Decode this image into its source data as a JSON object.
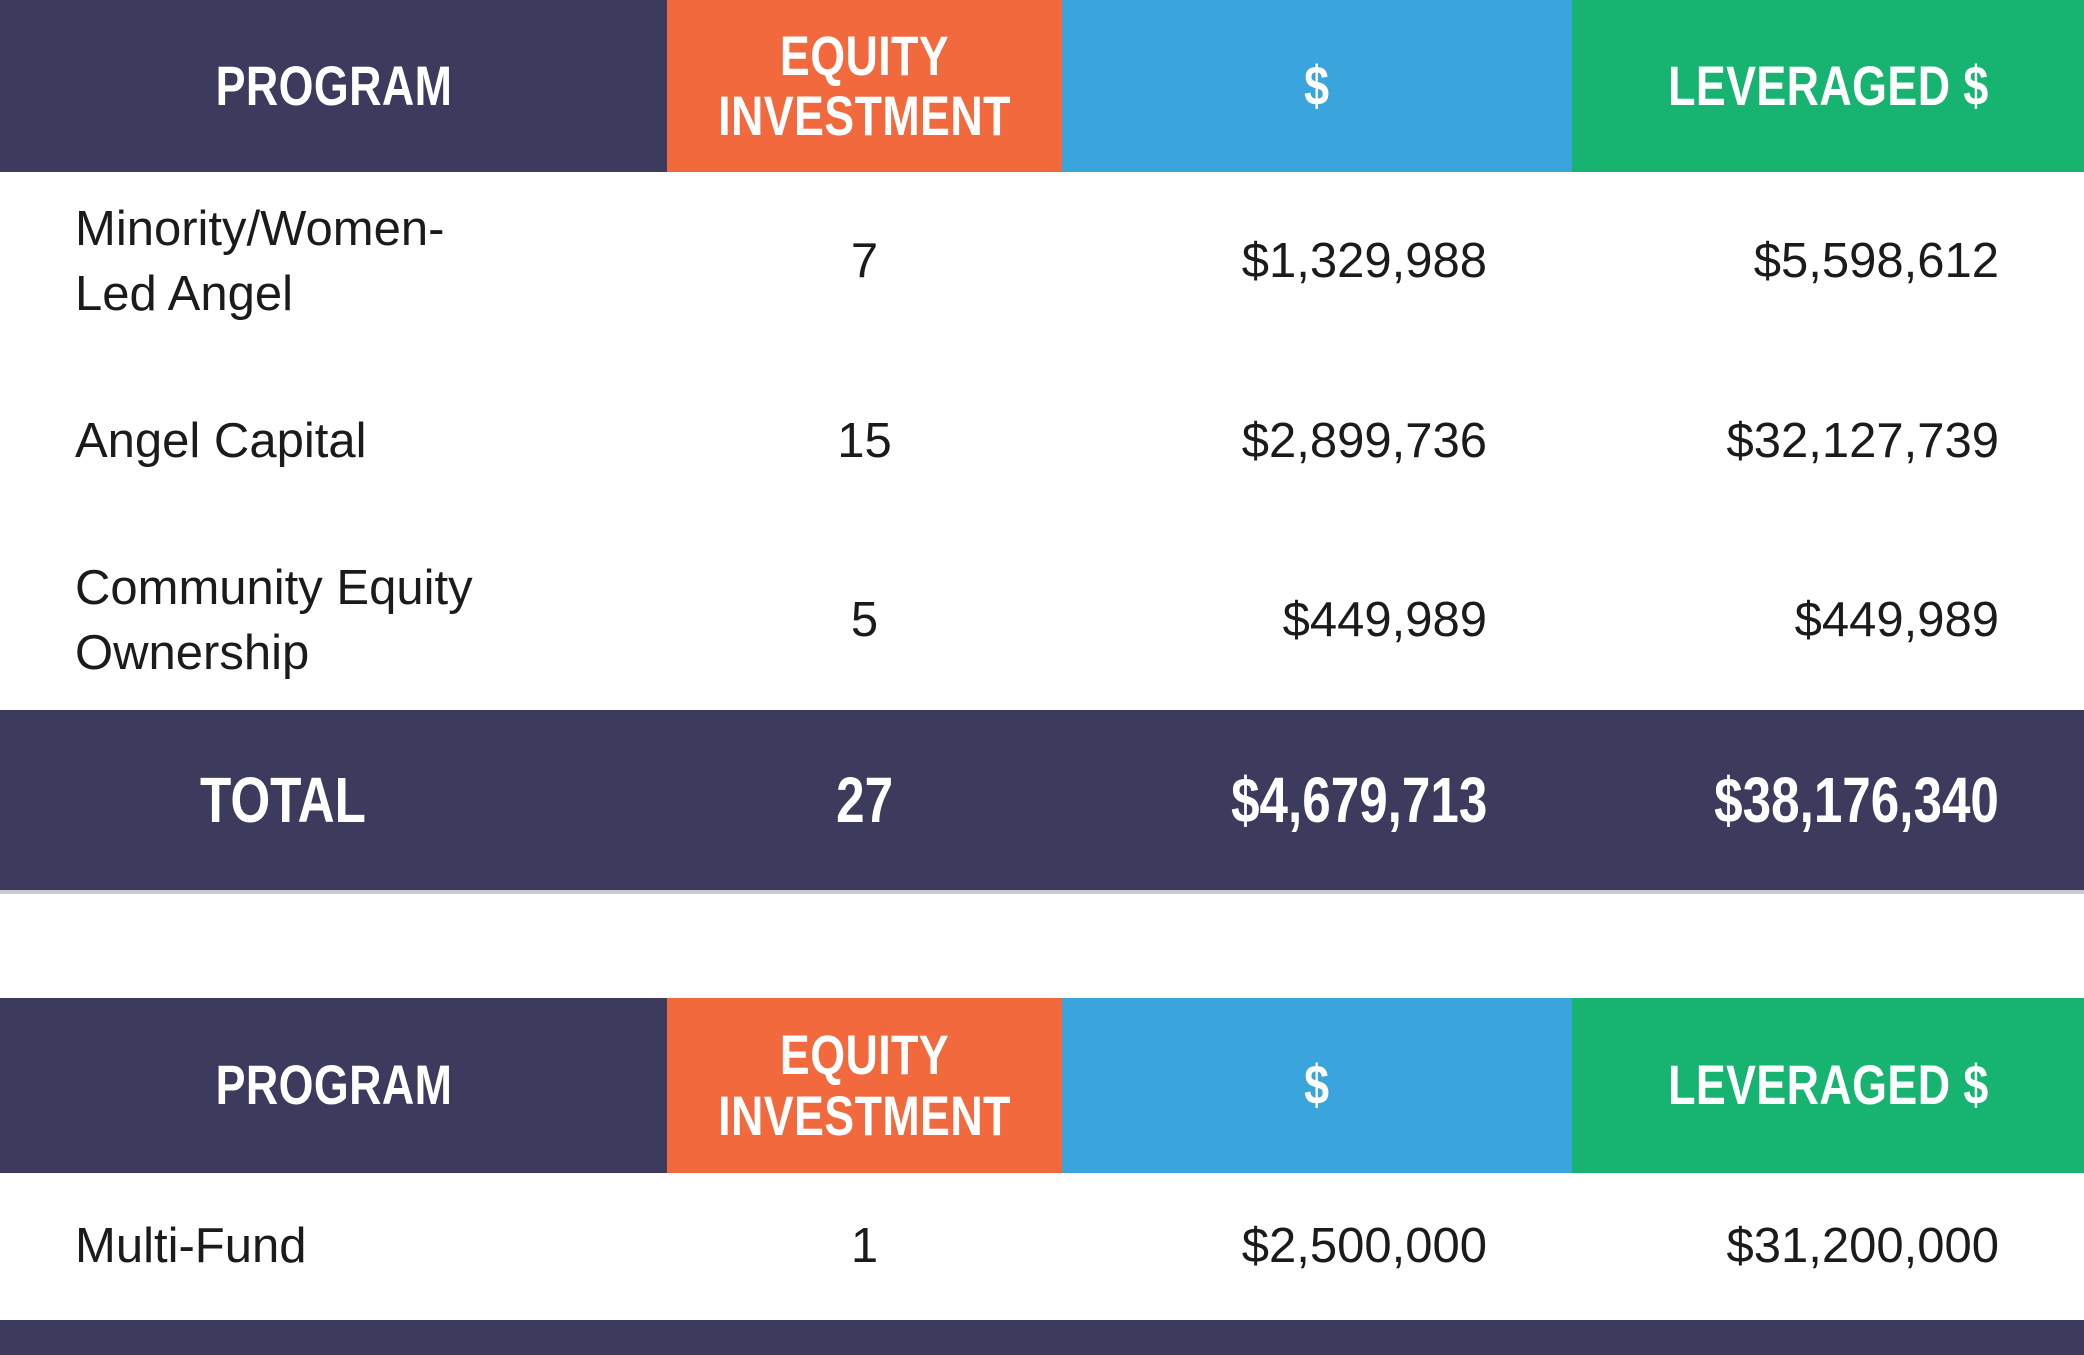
{
  "colors": {
    "navy": "#3C3A5D",
    "orange": "#F1693C",
    "blue": "#3AA4DC",
    "green": "#16B470",
    "text": "#1b1b1b",
    "header_text": "#ffffff"
  },
  "table1": {
    "headers": [
      "PROGRAM",
      "EQUITY INVESTMENT",
      "$",
      "LEVERAGED $"
    ],
    "rows": [
      {
        "program": "Minority/Women-Led Angel",
        "equity_investment": "7",
        "dollars": "$1,329,988",
        "leveraged": "$5,598,612"
      },
      {
        "program": "Angel Capital",
        "equity_investment": "15",
        "dollars": "$2,899,736",
        "leveraged": "$32,127,739"
      },
      {
        "program": "Community Equity Ownership",
        "equity_investment": "5",
        "dollars": "$449,989",
        "leveraged": "$449,989"
      }
    ],
    "total": {
      "label": "TOTAL",
      "equity_investment": "27",
      "dollars": "$4,679,713",
      "leveraged": "$38,176,340"
    }
  },
  "table2": {
    "headers": [
      "PROGRAM",
      "EQUITY INVESTMENT",
      "$",
      "LEVERAGED $"
    ],
    "rows": [
      {
        "program": "Multi-Fund",
        "equity_investment": "1",
        "dollars": "$2,500,000",
        "leveraged": "$31,200,000"
      }
    ]
  },
  "chart_data": [
    {
      "type": "table",
      "title": "",
      "columns": [
        "PROGRAM",
        "EQUITY INVESTMENT",
        "$",
        "LEVERAGED $"
      ],
      "rows": [
        [
          "Minority/Women-Led Angel",
          7,
          1329988,
          5598612
        ],
        [
          "Angel Capital",
          15,
          2899736,
          32127739
        ],
        [
          "Community Equity Ownership",
          5,
          449989,
          449989
        ]
      ],
      "total_row": [
        "TOTAL",
        27,
        4679713,
        38176340
      ],
      "header_colors": [
        "#3C3A5D",
        "#F1693C",
        "#3AA4DC",
        "#16B470"
      ],
      "total_row_color": "#3C3A5D"
    },
    {
      "type": "table",
      "title": "",
      "columns": [
        "PROGRAM",
        "EQUITY INVESTMENT",
        "$",
        "LEVERAGED $"
      ],
      "rows": [
        [
          "Multi-Fund",
          1,
          2500000,
          31200000
        ]
      ],
      "header_colors": [
        "#3C3A5D",
        "#F1693C",
        "#3AA4DC",
        "#16B470"
      ]
    }
  ]
}
